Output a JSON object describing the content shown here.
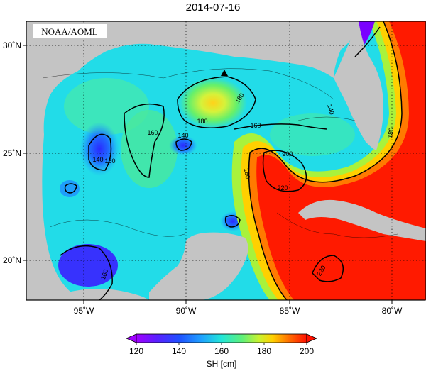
{
  "title": "2014-07-16",
  "watermark": "NOAA/AOML",
  "x_ticks": [
    "95˚W",
    "90˚W",
    "85˚W",
    "80˚W"
  ],
  "y_ticks": [
    "30˚N",
    "25˚N",
    "20˚N"
  ],
  "colorbar": {
    "label": "SH [cm]",
    "ticks": [
      "120",
      "140",
      "160",
      "180",
      "200"
    ],
    "colors": [
      "#9a00ff",
      "#5a00ff",
      "#1f2fff",
      "#1f7fff",
      "#18c0ff",
      "#22e8e0",
      "#3ee8a0",
      "#66f06a",
      "#a8f23c",
      "#ecf01a",
      "#ffc000",
      "#ff7a00",
      "#ff3a00",
      "#ff0000"
    ]
  },
  "contour_labels": [
    "160",
    "180",
    "140",
    "160",
    "140",
    "160",
    "160",
    "180",
    "200",
    "220",
    "180",
    "180",
    "220",
    "140"
  ],
  "colors": {
    "land": "#c4c4c4",
    "frame": "#000000"
  }
}
